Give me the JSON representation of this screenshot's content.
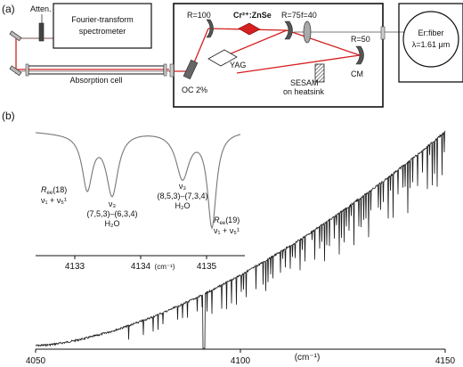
{
  "panel_a": {
    "tag": "(a)",
    "atten": "Atten.",
    "spectrometer_line1": "Fourier-transform",
    "spectrometer_line2": "spectrometer",
    "absorption_cell": "Absorption cell",
    "r100": "R=100",
    "crystal": "Cr²⁺:ZnSe",
    "r75": "R=75",
    "f40": "f=40",
    "r50": "R=50",
    "yag": "YAG",
    "oc": "OC 2%",
    "sesam_line1": "SESAM",
    "sesam_line2": "on heatsink",
    "cm": "CM",
    "fiber_line1": "Er:fiber",
    "fiber_line2": "λ=1.61 μm"
  },
  "panel_b": {
    "tag": "(b)",
    "inset": {
      "x_ticks": [
        "4133",
        "4134",
        "4135"
      ],
      "unit": "(cm⁻¹)",
      "ann1_line1": "R",
      "ann1_sub": "ee",
      "ann1_tail": "(18)",
      "ann1_line2": "ν₁ + ν₅¹",
      "ann2_line1": "ν₃",
      "ann2_line2": "(7,5,3)–(6,3,4)",
      "ann2_line3": "H₂O",
      "ann3_line1": "ν₃",
      "ann3_line2": "(8,5,3)–(7,3,4)",
      "ann3_line3": "H₂O",
      "ann4_line1": "R",
      "ann4_sub": "ee",
      "ann4_tail": "(19)",
      "ann4_line2": "ν₁ + ν₅¹"
    }
  },
  "chart_data": {
    "type": "line",
    "title": "",
    "xlabel": "(cm⁻¹)",
    "ylabel": "",
    "xlim": [
      4050,
      4150
    ],
    "x_ticks": [
      "4050",
      "4100",
      "4150"
    ],
    "grid": false
  }
}
